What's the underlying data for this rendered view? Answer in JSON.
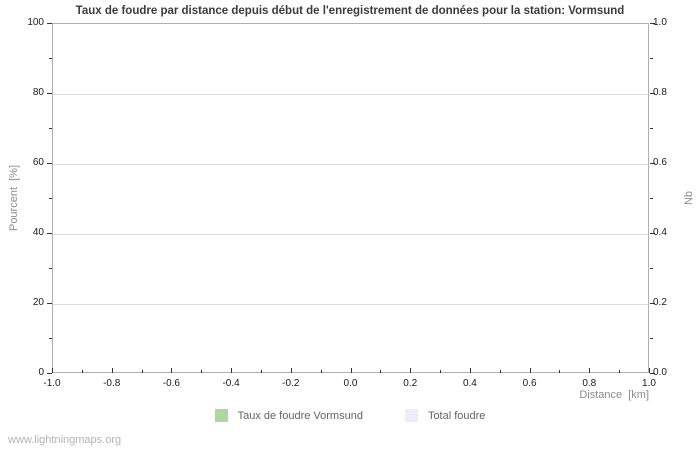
{
  "chart_data": {
    "type": "bar",
    "title": "Taux de foudre par distance depuis début de l'enregistrement de données pour la station: Vormsund",
    "xlabel": "Distance  [km]",
    "ylabel_left": "Pourcent  [%]",
    "ylabel_right": "Nb",
    "xlim": [
      -1.0,
      1.0
    ],
    "ylim_left": [
      0,
      100
    ],
    "ylim_right": [
      0.0,
      1.0
    ],
    "x_ticks": [
      "-1.0",
      "-0.8",
      "-0.6",
      "-0.4",
      "-0.2",
      "0.0",
      "0.2",
      "0.4",
      "0.6",
      "0.8",
      "1.0"
    ],
    "y_left_ticks": [
      "0",
      "20",
      "40",
      "60",
      "80",
      "100"
    ],
    "y_right_ticks": [
      "0.0",
      "0.2",
      "0.4",
      "0.6",
      "0.8",
      "1.0"
    ],
    "grid": true,
    "legend_position": "bottom-center",
    "series": [
      {
        "name": "Taux de foudre Vormsund",
        "color": "#abd7a0",
        "values": []
      },
      {
        "name": "Total foudre",
        "color": "#ededfa",
        "values": []
      }
    ]
  },
  "watermark": "www.lightningmaps.org",
  "colors": {
    "background": "#ffffff",
    "plot_border": "#b0b0b0",
    "gridline": "#dcdcdc",
    "tick_mark": "#333333",
    "tick_label": "#1a1a1a",
    "axis_label": "#8c8c8c",
    "title": "#3c3c3c",
    "legend_text": "#5f646e",
    "watermark": "#b3b3b3",
    "series_green": "#abd7a0",
    "series_lavender": "#ededfa"
  }
}
